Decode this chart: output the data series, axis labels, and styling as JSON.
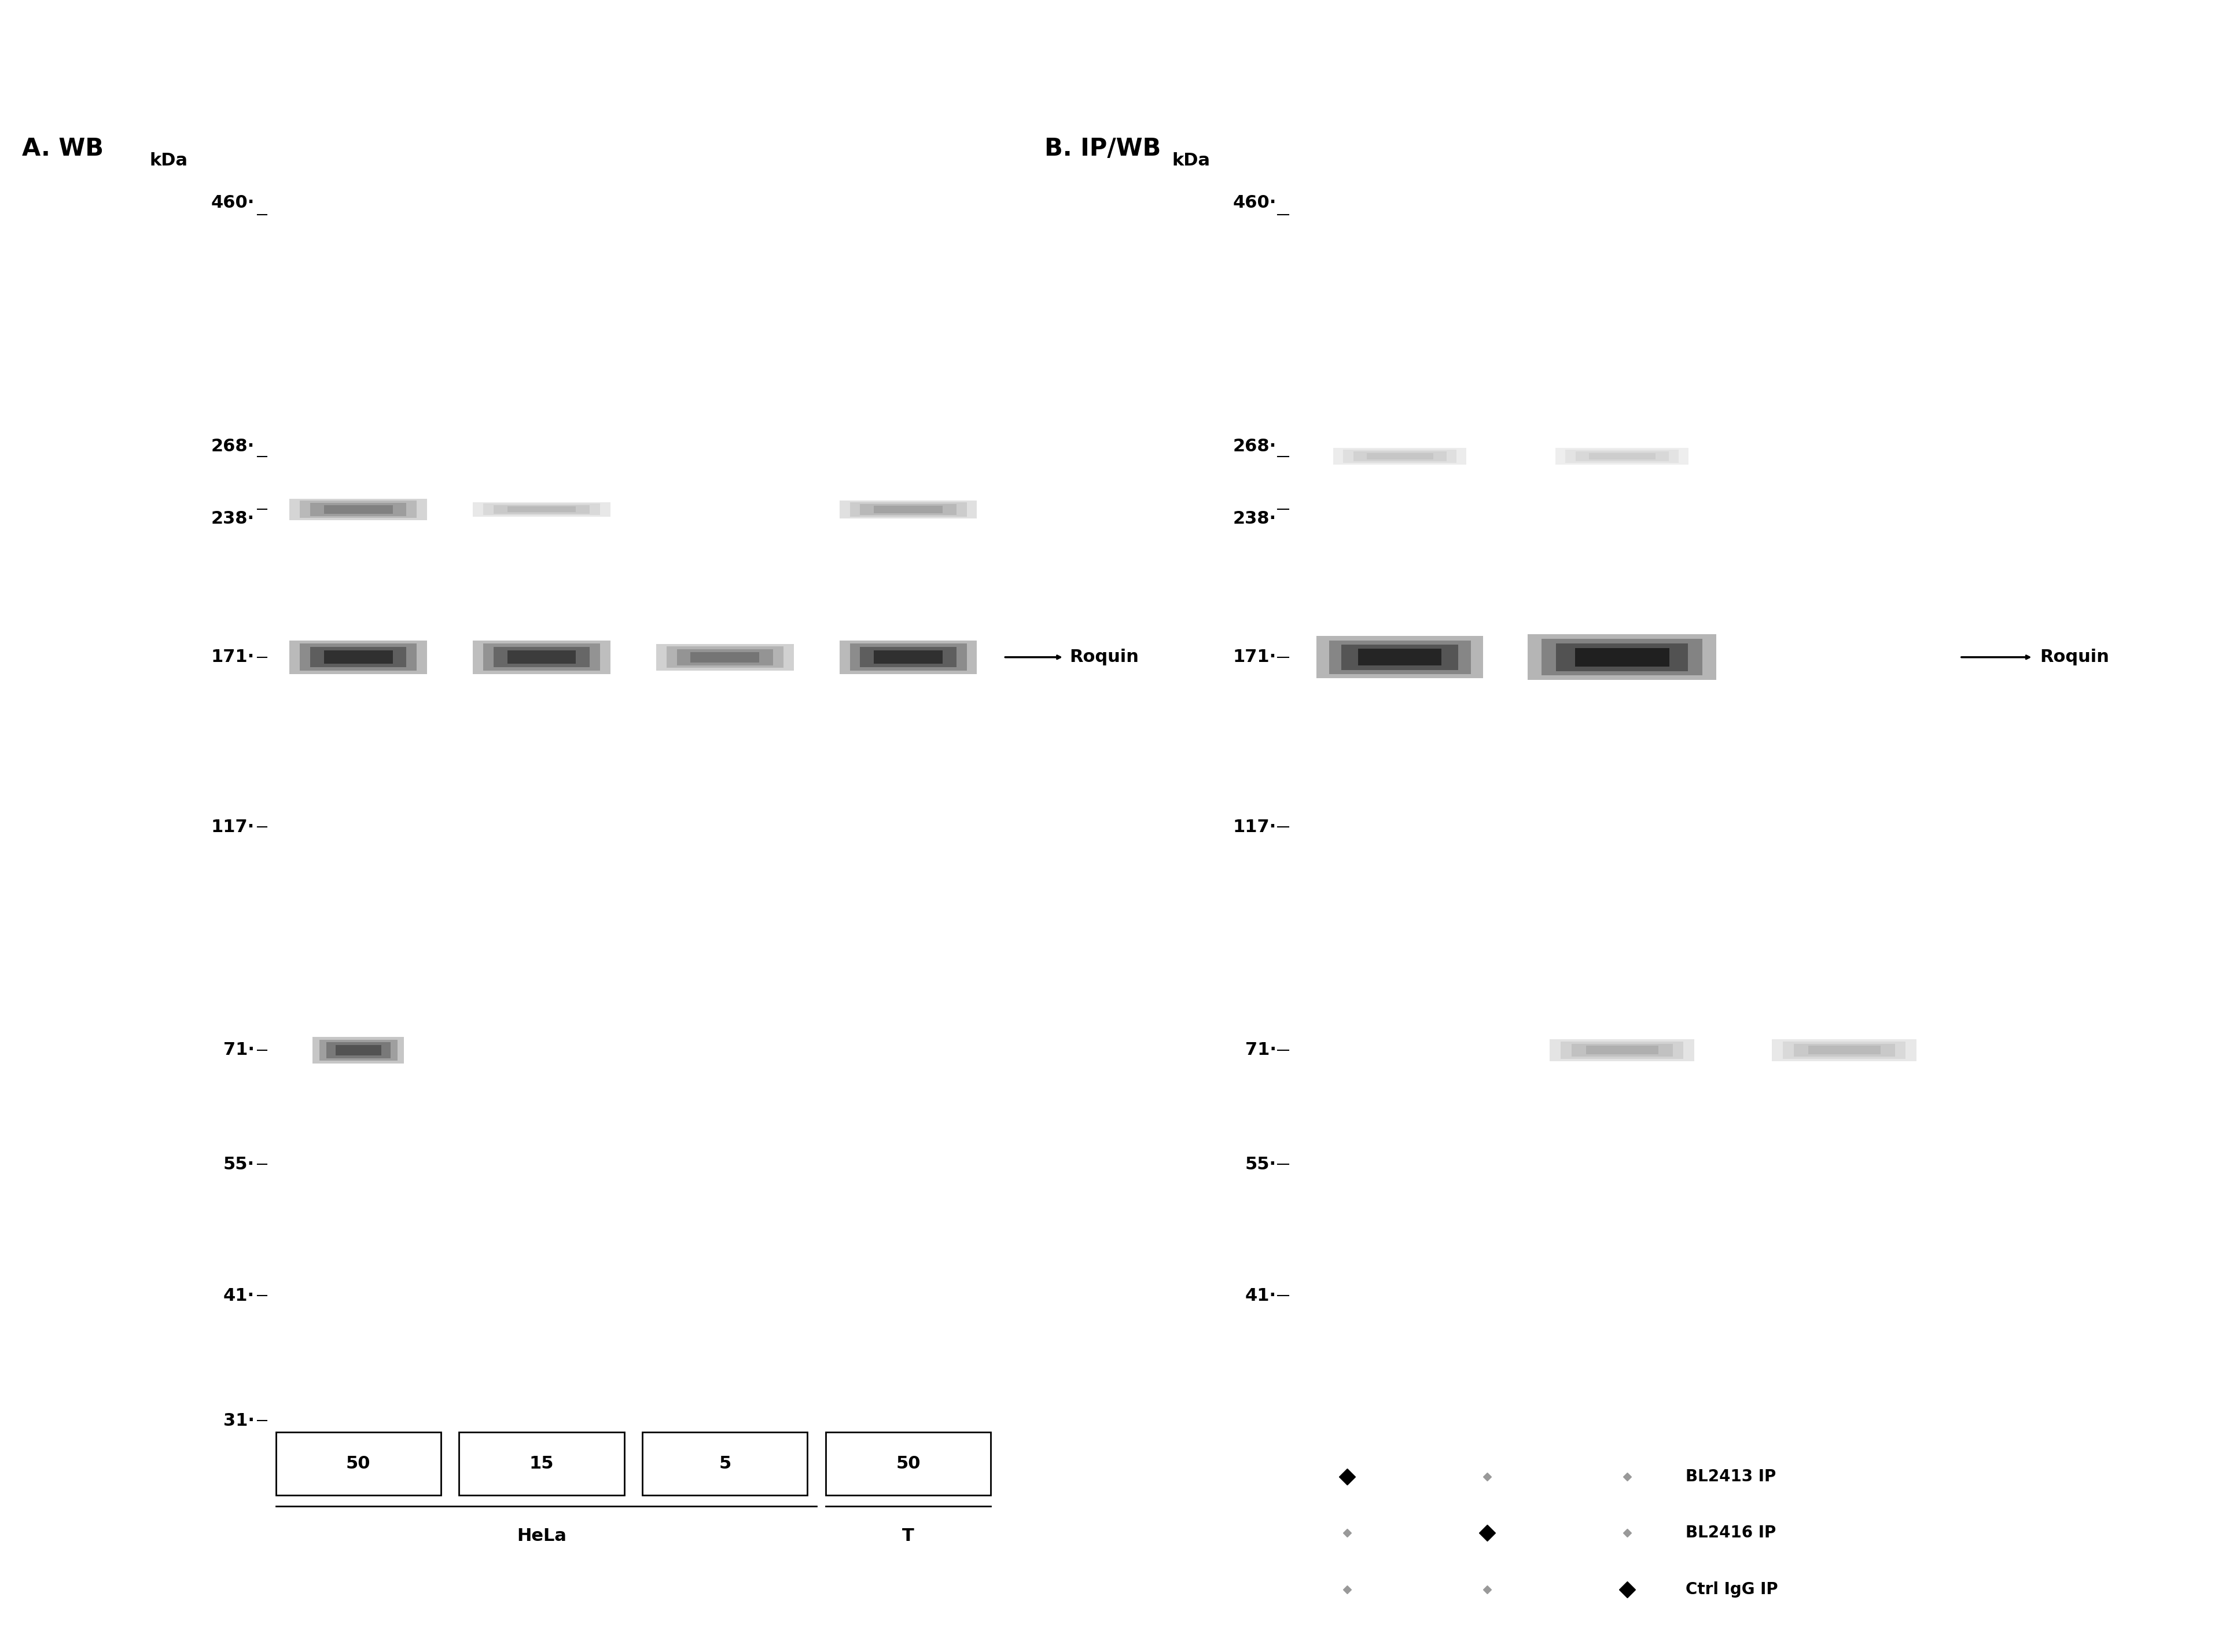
{
  "bg_color": "#ffffff",
  "blot_bg": "#d8d8d8",
  "panel_A_title": "A. WB",
  "panel_B_title": "B. IP/WB",
  "kda_label": "kDa",
  "markers_A": [
    460,
    268,
    238,
    171,
    117,
    71,
    55,
    41,
    31
  ],
  "markers_B": [
    460,
    268,
    238,
    171,
    117,
    71,
    55,
    41
  ],
  "roquin_label": "Roquin",
  "panel_A_cols": [
    "50",
    "15",
    "5",
    "50"
  ],
  "panel_A_group_labels": [
    "HeLa",
    "T"
  ],
  "panel_B_legend_labels": [
    "BL2413 IP",
    "BL2416 IP",
    "Ctrl IgG IP"
  ]
}
